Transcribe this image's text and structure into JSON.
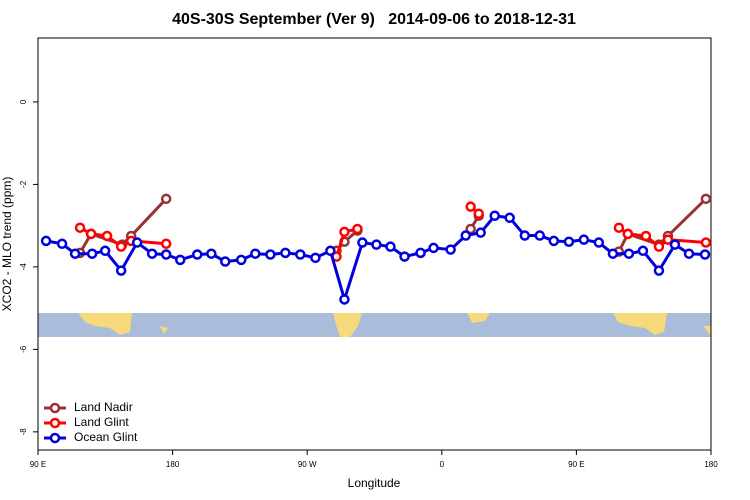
{
  "chart_data": {
    "type": "line",
    "title": "40S-30S September (Ver 9)   2014-09-06 to 2018-12-31",
    "x_label": "Longitude",
    "y_label": "XCO2 - MLO trend (ppm)",
    "xlim": [
      90,
      540
    ],
    "xticks": [
      {
        "value": 90,
        "label": "90 E"
      },
      {
        "value": 180,
        "label": "180"
      },
      {
        "value": 270,
        "label": "90 W"
      },
      {
        "value": 360,
        "label": "0"
      },
      {
        "value": 450,
        "label": "90 E"
      },
      {
        "value": 540,
        "label": "180"
      }
    ],
    "ylim": [
      -8.44,
      1.55
    ],
    "yticks": [
      0,
      -2,
      -4,
      -6,
      -8
    ],
    "legend": "bottom-left",
    "series": [
      {
        "name": "Land Nadir",
        "color": "#993333",
        "x": [
          118.1,
          125.5,
          146.3,
          152.3,
          175.7,
          null,
          289.6,
          294.9,
          303.6,
          null,
          379.3,
          384.7,
          null,
          478.4,
          484.4,
          505.2,
          511.2,
          536.6
        ],
        "values": [
          -3.66,
          -3.2,
          -3.46,
          -3.25,
          -2.35,
          null,
          -3.61,
          -3.39,
          -3.12,
          null,
          -3.08,
          -2.76,
          null,
          -3.63,
          -3.2,
          -3.46,
          -3.25,
          -2.35
        ]
      },
      {
        "name": "Land Glint",
        "color": "#ff0000",
        "x": [
          118.1,
          125.5,
          136.2,
          145.6,
          152.3,
          175.7,
          null,
          289.6,
          294.9,
          303.6,
          null,
          379.3,
          384.7,
          null,
          478.4,
          484.4,
          496.5,
          505.2,
          511.2,
          536.6
        ],
        "values": [
          -3.05,
          -3.2,
          -3.25,
          -3.51,
          -3.37,
          -3.44,
          null,
          -3.75,
          -3.15,
          -3.08,
          null,
          -2.54,
          -2.71,
          null,
          -3.05,
          -3.2,
          -3.25,
          -3.51,
          -3.34,
          -3.41
        ]
      },
      {
        "name": "Ocean Glint",
        "color": "#0000dd",
        "x": [
          95.4,
          106.1,
          114.8,
          126.2,
          134.9,
          145.6,
          156.3,
          166.3,
          175.7,
          185.1,
          196.5,
          205.9,
          215.2,
          225.9,
          235.3,
          245.4,
          255.4,
          265.4,
          275.5,
          285.5,
          294.9,
          306.9,
          316.3,
          325.7,
          335.1,
          345.8,
          354.5,
          365.9,
          376.0,
          386.0,
          395.4,
          405.4,
          415.5,
          425.5,
          434.9,
          445.0,
          455.0,
          465.0,
          474.4,
          485.1,
          494.5,
          505.2,
          515.9,
          525.3,
          536.0
        ],
        "values": [
          -3.37,
          -3.44,
          -3.68,
          -3.68,
          -3.61,
          -4.09,
          -3.41,
          -3.68,
          -3.7,
          -3.83,
          -3.7,
          -3.68,
          -3.87,
          -3.83,
          -3.68,
          -3.7,
          -3.66,
          -3.7,
          -3.78,
          -3.61,
          -4.79,
          -3.41,
          -3.46,
          -3.51,
          -3.75,
          -3.66,
          -3.54,
          -3.58,
          -3.24,
          -3.17,
          -2.76,
          -2.81,
          -3.24,
          -3.24,
          -3.37,
          -3.39,
          -3.34,
          -3.41,
          -3.68,
          -3.68,
          -3.61,
          -4.09,
          -3.46,
          -3.68,
          -3.7
        ]
      }
    ]
  }
}
